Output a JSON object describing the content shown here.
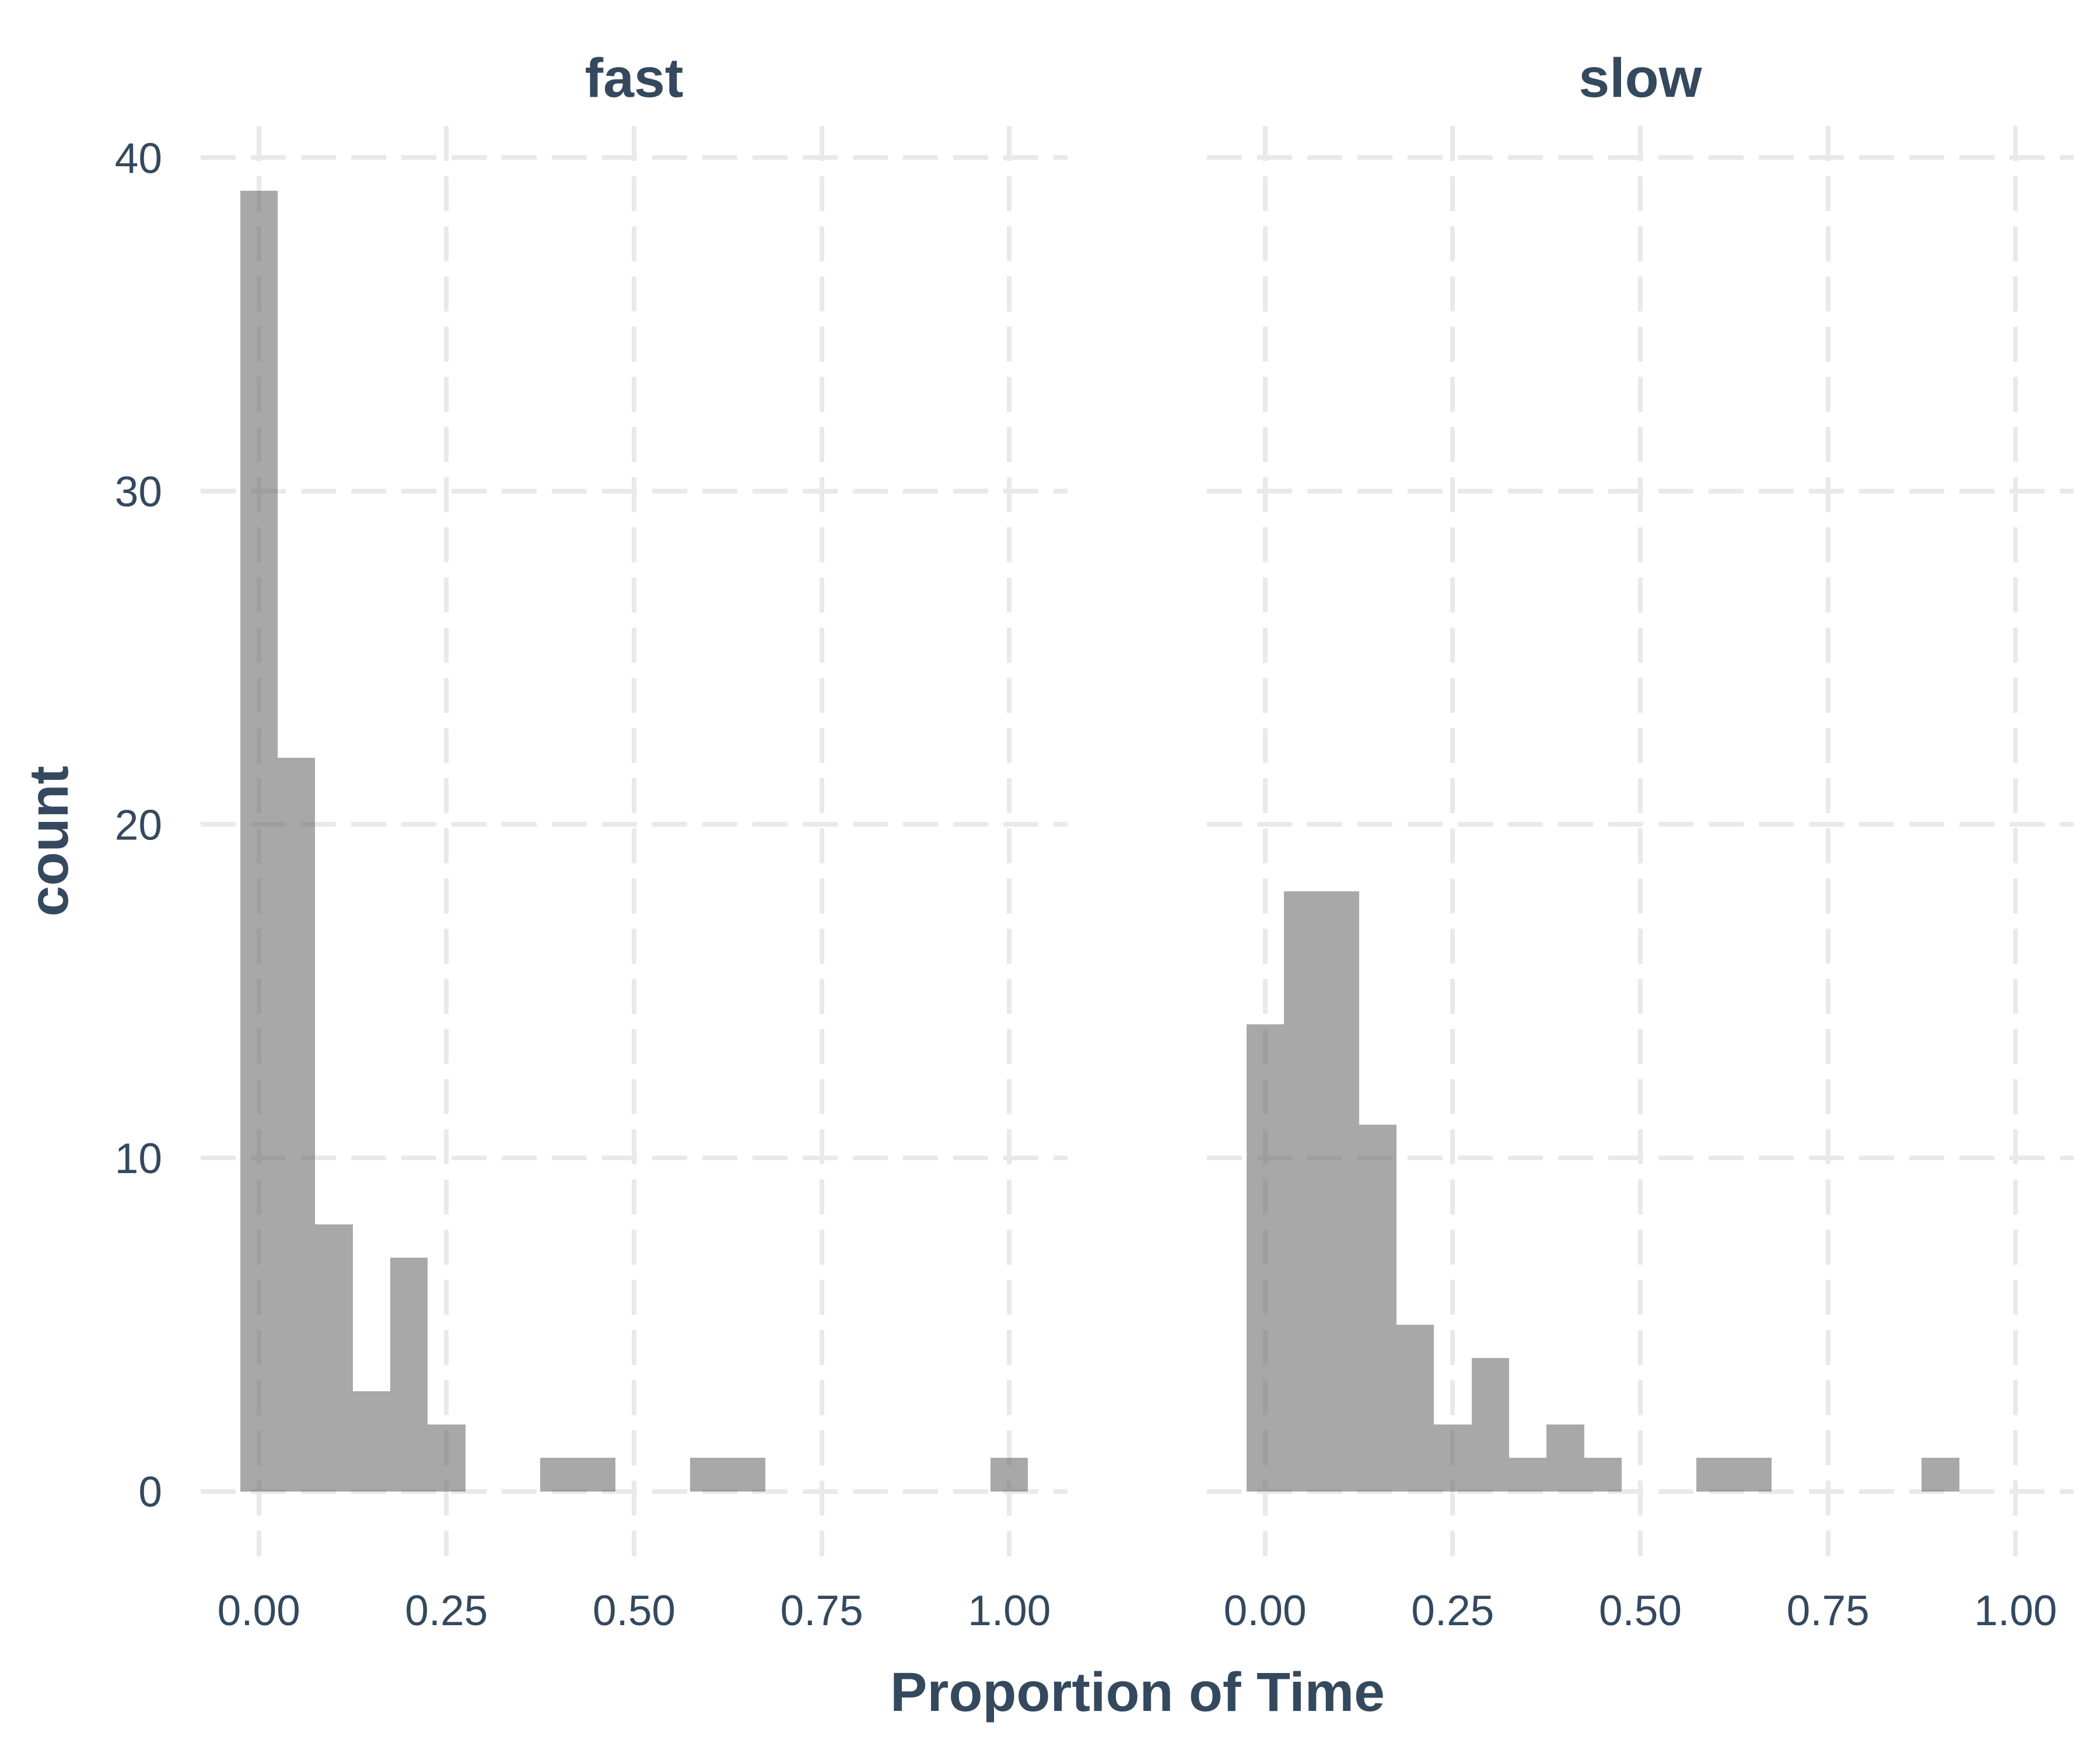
{
  "chart_data": {
    "type": "bar",
    "subtype": "faceted-histogram",
    "title": "",
    "xlabel": "Proportion of Time",
    "ylabel": "count",
    "bin_width": 0.05,
    "x_ticks": [
      "0.00",
      "0.25",
      "0.50",
      "0.75",
      "1.00"
    ],
    "x_tick_values": [
      0,
      0.25,
      0.5,
      0.75,
      1
    ],
    "y_ticks": [
      "0",
      "10",
      "20",
      "30",
      "40"
    ],
    "y_tick_values": [
      0,
      10,
      20,
      30,
      40
    ],
    "xlim": [
      -0.0775,
      1.0775
    ],
    "ylim": [
      -1.95,
      40.95
    ],
    "grid": "major gridlines, dashed, no axis lines, no tick marks",
    "legend": "none",
    "facets": [
      {
        "label": "fast",
        "bins": [
          {
            "center": 0.0,
            "count": 39
          },
          {
            "center": 0.05,
            "count": 22
          },
          {
            "center": 0.1,
            "count": 8
          },
          {
            "center": 0.15,
            "count": 3
          },
          {
            "center": 0.2,
            "count": 7
          },
          {
            "center": 0.25,
            "count": 2
          },
          {
            "center": 0.4,
            "count": 1
          },
          {
            "center": 0.45,
            "count": 1
          },
          {
            "center": 0.6,
            "count": 1
          },
          {
            "center": 0.65,
            "count": 1
          },
          {
            "center": 1.0,
            "count": 1
          }
        ]
      },
      {
        "label": "slow",
        "bins": [
          {
            "center": 0.0,
            "count": 14
          },
          {
            "center": 0.05,
            "count": 18
          },
          {
            "center": 0.1,
            "count": 18
          },
          {
            "center": 0.15,
            "count": 11
          },
          {
            "center": 0.2,
            "count": 5
          },
          {
            "center": 0.25,
            "count": 2
          },
          {
            "center": 0.3,
            "count": 4
          },
          {
            "center": 0.35,
            "count": 1
          },
          {
            "center": 0.4,
            "count": 2
          },
          {
            "center": 0.45,
            "count": 1
          },
          {
            "center": 0.6,
            "count": 1
          },
          {
            "center": 0.65,
            "count": 1
          },
          {
            "center": 0.9,
            "count": 1
          }
        ]
      }
    ],
    "colors": {
      "bar_fill": "rgba(100,100,100,0.56)",
      "gridline": "#E9E9E9",
      "text": "#34495E",
      "background": "#FFFFFF"
    }
  }
}
